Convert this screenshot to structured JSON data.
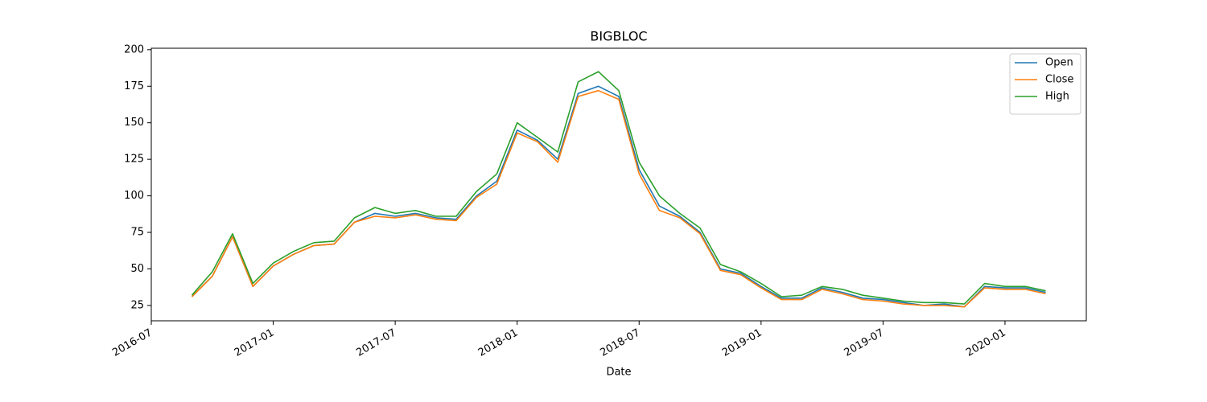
{
  "chart_data": {
    "type": "line",
    "title": "BIGBLOC",
    "xlabel": "Date",
    "x": [
      "2016-09",
      "2016-10",
      "2016-11",
      "2016-12",
      "2017-01",
      "2017-02",
      "2017-03",
      "2017-04",
      "2017-05",
      "2017-06",
      "2017-07",
      "2017-08",
      "2017-09",
      "2017-10",
      "2017-11",
      "2017-12",
      "2018-01",
      "2018-02",
      "2018-03",
      "2018-04",
      "2018-05",
      "2018-06",
      "2018-07",
      "2018-08",
      "2018-09",
      "2018-10",
      "2018-11",
      "2018-12",
      "2019-01",
      "2019-02",
      "2019-03",
      "2019-04",
      "2019-05",
      "2019-06",
      "2019-07",
      "2019-08",
      "2019-09",
      "2019-10",
      "2019-11",
      "2019-12",
      "2020-01",
      "2020-02",
      "2020-03"
    ],
    "series": [
      {
        "name": "Open",
        "color": "#1f77b4",
        "values": [
          31,
          45,
          72,
          38,
          52,
          60,
          66,
          67,
          82,
          88,
          86,
          88,
          85,
          84,
          100,
          110,
          145,
          138,
          125,
          170,
          175,
          168,
          118,
          93,
          86,
          75,
          50,
          47,
          38,
          30,
          30,
          37,
          34,
          30,
          29,
          27,
          25,
          26,
          24,
          38,
          37,
          37,
          34
        ]
      },
      {
        "name": "Close",
        "color": "#ff7f0e",
        "values": [
          31,
          45,
          72,
          38,
          52,
          60,
          66,
          67,
          82,
          86,
          85,
          87,
          84,
          83,
          99,
          108,
          143,
          137,
          123,
          168,
          172,
          166,
          115,
          90,
          85,
          74,
          49,
          46,
          37,
          29,
          29,
          36,
          33,
          29,
          28,
          26,
          25,
          25,
          24,
          37,
          36,
          36,
          33
        ]
      },
      {
        "name": "High",
        "color": "#2ca02c",
        "values": [
          32,
          48,
          74,
          40,
          54,
          62,
          68,
          69,
          85,
          92,
          88,
          90,
          86,
          86,
          103,
          115,
          150,
          140,
          130,
          178,
          185,
          172,
          123,
          100,
          88,
          78,
          53,
          48,
          40,
          31,
          32,
          38,
          36,
          32,
          30,
          28,
          27,
          27,
          26,
          40,
          38,
          38,
          35
        ]
      }
    ],
    "xlim": [
      "2016-07",
      "2020-05"
    ],
    "xticks": [
      "2016-07",
      "2017-01",
      "2017-07",
      "2018-01",
      "2018-07",
      "2019-01",
      "2019-07",
      "2020-01"
    ],
    "ylim": [
      14.5,
      201
    ],
    "yticks": [
      25,
      50,
      75,
      100,
      125,
      150,
      175,
      200
    ],
    "legend": "upper right"
  }
}
